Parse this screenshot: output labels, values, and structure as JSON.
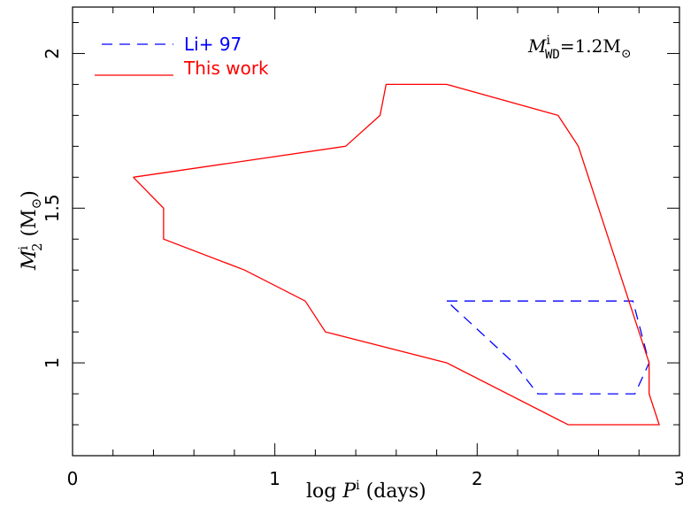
{
  "chart_data": {
    "type": "line",
    "xlim": [
      0,
      3
    ],
    "ylim": [
      0.7,
      2.15
    ],
    "x_ticks_major": [
      0,
      1,
      2,
      3
    ],
    "x_tick_labels": [
      "0",
      "1",
      "2",
      "3"
    ],
    "x_ticks_minor": [
      0.2,
      0.4,
      0.6,
      0.8,
      1.2,
      1.4,
      1.6,
      1.8,
      2.2,
      2.4,
      2.6,
      2.8
    ],
    "y_ticks_major": [
      1,
      1.5,
      2
    ],
    "y_tick_labels": [
      "1",
      "1.5",
      "2"
    ],
    "y_ticks_minor": [
      0.8,
      0.9,
      1.1,
      1.2,
      1.3,
      1.4,
      1.6,
      1.7,
      1.8,
      1.9,
      2.1
    ],
    "xlabel": {
      "pre": "log ",
      "var": "P",
      "sup": "i",
      "post": " (days)"
    },
    "ylabel": {
      "var": "M",
      "sup": "i",
      "sub": "2",
      "post": " (M",
      "sun": "⊙",
      "close": ")"
    },
    "annotation": {
      "var": "M",
      "sup": "i",
      "sub": "WD",
      "post": "=1.2M",
      "sun": "⊙"
    },
    "series": [
      {
        "name": "Li+ 97",
        "color": "#0000ff",
        "style": "dashed",
        "x": [
          1.85,
          2.77,
          2.85,
          2.78,
          2.3,
          2.18,
          1.85
        ],
        "y": [
          1.2,
          1.2,
          1.0,
          0.9,
          0.9,
          1.0,
          1.2
        ]
      },
      {
        "name": "This work",
        "color": "#ff0000",
        "style": "solid",
        "x": [
          0.3,
          1.35,
          1.52,
          1.55,
          1.85,
          2.4,
          2.5,
          2.85,
          2.85,
          2.9,
          2.45,
          1.85,
          1.25,
          1.15,
          0.85,
          0.45,
          0.45,
          0.3
        ],
        "y": [
          1.6,
          1.7,
          1.8,
          1.9,
          1.9,
          1.8,
          1.7,
          1.0,
          0.9,
          0.8,
          0.8,
          1.0,
          1.1,
          1.2,
          1.3,
          1.4,
          1.5,
          1.6
        ]
      }
    ],
    "legend": {
      "placement": "top-left"
    },
    "grid": false
  }
}
